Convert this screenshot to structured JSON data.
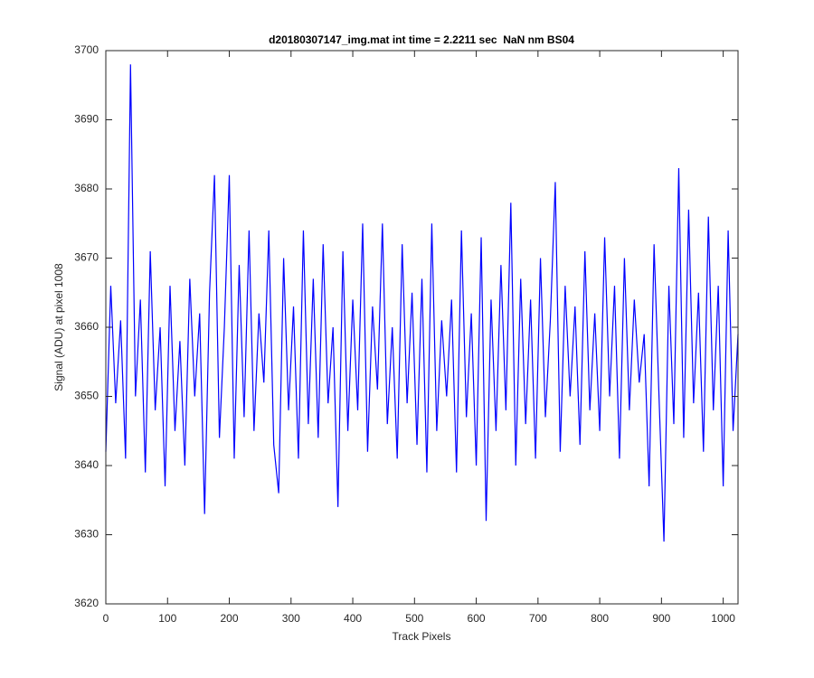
{
  "chart_data": {
    "type": "line",
    "title": "d20180307147_img.mat int time = 2.2211 sec  NaN nm BS04",
    "xlabel": "Track Pixels",
    "ylabel": "Signal (ADU) at pixel 1008",
    "color": "#0000ff",
    "xlim": [
      0,
      1024
    ],
    "ylim": [
      3620,
      3700
    ],
    "xticks": [
      0,
      100,
      200,
      300,
      400,
      500,
      600,
      700,
      800,
      900,
      1000
    ],
    "yticks": [
      3620,
      3630,
      3640,
      3650,
      3660,
      3670,
      3680,
      3690,
      3700
    ],
    "x": [
      0,
      8,
      16,
      24,
      32,
      40,
      48,
      56,
      64,
      72,
      80,
      88,
      96,
      104,
      112,
      120,
      128,
      136,
      144,
      152,
      160,
      168,
      176,
      184,
      192,
      200,
      208,
      216,
      224,
      232,
      240,
      248,
      256,
      264,
      272,
      280,
      288,
      296,
      304,
      312,
      320,
      328,
      336,
      344,
      352,
      360,
      368,
      376,
      384,
      392,
      400,
      408,
      416,
      424,
      432,
      440,
      448,
      456,
      464,
      472,
      480,
      488,
      496,
      504,
      512,
      520,
      528,
      536,
      544,
      552,
      560,
      568,
      576,
      584,
      592,
      600,
      608,
      616,
      624,
      632,
      640,
      648,
      656,
      664,
      672,
      680,
      688,
      696,
      704,
      712,
      720,
      728,
      736,
      744,
      752,
      760,
      768,
      776,
      784,
      792,
      800,
      808,
      816,
      824,
      832,
      840,
      848,
      856,
      864,
      872,
      880,
      888,
      896,
      904,
      912,
      920,
      928,
      936,
      944,
      952,
      960,
      968,
      976,
      984,
      992,
      1000,
      1008,
      1016,
      1024
    ],
    "values": [
      3642,
      3666,
      3649,
      3661,
      3641,
      3698,
      3650,
      3664,
      3639,
      3671,
      3648,
      3660,
      3637,
      3666,
      3645,
      3658,
      3640,
      3667,
      3650,
      3662,
      3633,
      3665,
      3682,
      3644,
      3660,
      3682,
      3641,
      3669,
      3647,
      3674,
      3645,
      3662,
      3652,
      3674,
      3643,
      3636,
      3670,
      3648,
      3663,
      3641,
      3674,
      3646,
      3667,
      3644,
      3672,
      3649,
      3660,
      3634,
      3671,
      3645,
      3664,
      3648,
      3675,
      3642,
      3663,
      3651,
      3675,
      3646,
      3660,
      3641,
      3672,
      3649,
      3665,
      3643,
      3667,
      3639,
      3675,
      3645,
      3661,
      3650,
      3664,
      3639,
      3674,
      3647,
      3662,
      3640,
      3673,
      3632,
      3664,
      3645,
      3669,
      3648,
      3678,
      3640,
      3667,
      3646,
      3664,
      3641,
      3670,
      3647,
      3661,
      3681,
      3642,
      3666,
      3650,
      3663,
      3643,
      3671,
      3648,
      3662,
      3645,
      3673,
      3650,
      3666,
      3641,
      3670,
      3648,
      3664,
      3652,
      3659,
      3637,
      3672,
      3650,
      3629,
      3666,
      3646,
      3683,
      3644,
      3677,
      3649,
      3665,
      3642,
      3676,
      3648,
      3666,
      3637,
      3674,
      3645,
      3659
    ],
    "grid": false
  }
}
